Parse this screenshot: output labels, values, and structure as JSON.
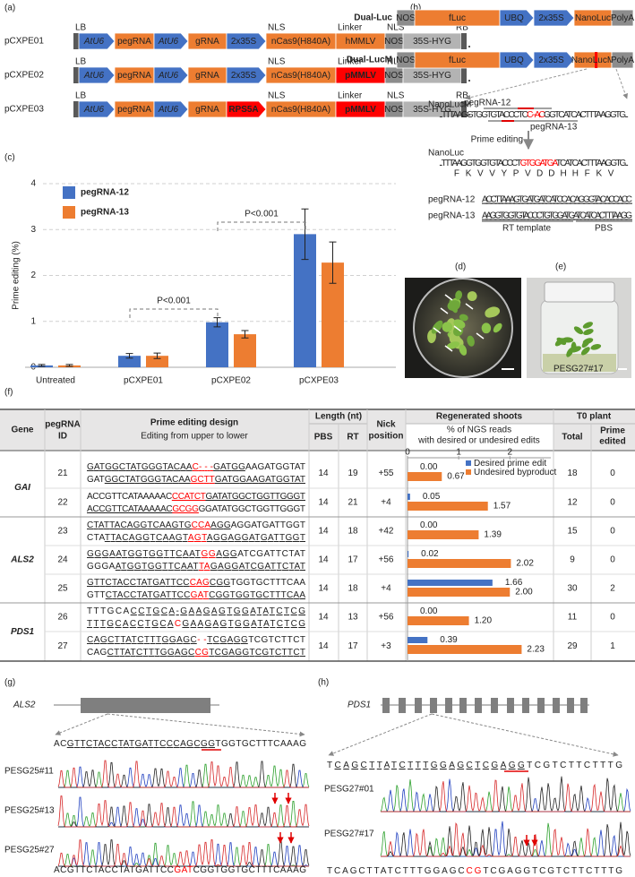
{
  "panel_labels": [
    "(a)",
    "(b)",
    "(c)",
    "(d)",
    "(e)",
    "(f)",
    "(g)",
    "(h)"
  ],
  "constructs": [
    {
      "name": "pCXPE01",
      "top_labels": [
        "LB",
        "NLS",
        "Linker",
        "NLS",
        "RB"
      ],
      "elements": [
        {
          "label": "AtU6",
          "color": "#4472c4",
          "shape": "arrow",
          "italic": true
        },
        {
          "label": "pegRNA",
          "color": "#ed7d31",
          "shape": "box"
        },
        {
          "label": "AtU6",
          "color": "#4472c4",
          "shape": "arrow",
          "italic": true
        },
        {
          "label": "gRNA",
          "color": "#ed7d31",
          "shape": "box"
        },
        {
          "label": "2x35S",
          "color": "#4472c4",
          "shape": "arrow"
        },
        {
          "label": "nCas9(H840A)",
          "color": "#ed7d31",
          "shape": "box"
        },
        {
          "label": "hMMLV",
          "color": "#ed7d31",
          "shape": "box"
        },
        {
          "label": "NOS",
          "color": "#8c8c8c",
          "shape": "box"
        },
        {
          "label": "35S-HYG",
          "color": "#b3b3b3",
          "shape": "box"
        }
      ]
    },
    {
      "name": "pCXPE02",
      "top_labels": [
        "LB",
        "NLS",
        "Linker",
        "NLS",
        "RB"
      ],
      "elements": [
        {
          "label": "AtU6",
          "color": "#4472c4",
          "shape": "arrow",
          "italic": true
        },
        {
          "label": "pegRNA",
          "color": "#ed7d31",
          "shape": "box"
        },
        {
          "label": "AtU6",
          "color": "#4472c4",
          "shape": "arrow",
          "italic": true
        },
        {
          "label": "gRNA",
          "color": "#ed7d31",
          "shape": "box"
        },
        {
          "label": "2x35S",
          "color": "#4472c4",
          "shape": "arrow"
        },
        {
          "label": "nCas9(H840A)",
          "color": "#ed7d31",
          "shape": "box"
        },
        {
          "label": "pMMLV",
          "color": "#ff0000",
          "shape": "box",
          "bold": true
        },
        {
          "label": "NOS",
          "color": "#8c8c8c",
          "shape": "box"
        },
        {
          "label": "35S-HYG",
          "color": "#b3b3b3",
          "shape": "box"
        }
      ]
    },
    {
      "name": "pCXPE03",
      "top_labels": [
        "LB",
        "NLS",
        "Linker",
        "NLS",
        "RB"
      ],
      "elements": [
        {
          "label": "AtU6",
          "color": "#4472c4",
          "shape": "arrow",
          "italic": true
        },
        {
          "label": "pegRNA",
          "color": "#ed7d31",
          "shape": "box"
        },
        {
          "label": "AtU6",
          "color": "#4472c4",
          "shape": "arrow",
          "italic": true
        },
        {
          "label": "gRNA",
          "color": "#ed7d31",
          "shape": "box"
        },
        {
          "label": "RPS5A",
          "color": "#ff0000",
          "shape": "arrow",
          "bold": true
        },
        {
          "label": "nCas9(H840A)",
          "color": "#ed7d31",
          "shape": "box"
        },
        {
          "label": "pMMLV",
          "color": "#ff0000",
          "shape": "box",
          "bold": true
        },
        {
          "label": "NOS",
          "color": "#8c8c8c",
          "shape": "box"
        },
        {
          "label": "35S-HYG",
          "color": "#b3b3b3",
          "shape": "box"
        }
      ]
    }
  ],
  "reporters": [
    {
      "name": "Dual-Luc",
      "elements": [
        {
          "label": "NOS",
          "color": "#8c8c8c",
          "shape": "box"
        },
        {
          "label": "fLuc",
          "color": "#ed7d31",
          "shape": "box"
        },
        {
          "label": "UBQ",
          "color": "#4472c4",
          "shape": "arrow"
        },
        {
          "label": "2x35S",
          "color": "#4472c4",
          "shape": "arrow"
        },
        {
          "label": "NanoLuc",
          "color": "#ed7d31",
          "shape": "box"
        },
        {
          "label": "PolyA",
          "color": "#8c8c8c",
          "shape": "box"
        }
      ]
    },
    {
      "name": "Dual-LucM",
      "elements": [
        {
          "label": "NOS",
          "color": "#8c8c8c",
          "shape": "box"
        },
        {
          "label": "fLuc",
          "color": "#ed7d31",
          "shape": "box"
        },
        {
          "label": "UBQ",
          "color": "#4472c4",
          "shape": "arrow"
        },
        {
          "label": "2x35S",
          "color": "#4472c4",
          "shape": "arrow"
        },
        {
          "label": "NanoLucM",
          "color": "#ed7d31",
          "shape": "box",
          "mark_color": "#ff0000"
        },
        {
          "label": "PolyA",
          "color": "#8c8c8c",
          "shape": "box"
        }
      ]
    }
  ],
  "reporter_sequences": {
    "mutant_label": "NanoLucM",
    "mutant": [
      {
        "text": "...TTTAAGGTGGTGTACCCTC"
      },
      {
        "text": "C--AC",
        "color": "#ff0000"
      },
      {
        "text": "GGTCATCACTTTAAGGTG..."
      }
    ],
    "guide_labels": [
      "pegRNA-12",
      "pegRNA-13"
    ],
    "arrow_label": "Prime editing",
    "wildtype_label": "NanoLuc",
    "wildtype": [
      {
        "text": "...TTTAAGGTGGTGTACCCT"
      },
      {
        "text": "GTGGATGA",
        "color": "#ff0000"
      },
      {
        "text": "TCATCACTTTAAGGTG..."
      }
    ],
    "protein": [
      "F",
      "K",
      "V",
      "V",
      "Y",
      "P",
      "V",
      "D",
      "D",
      "H",
      "H",
      "F",
      "K",
      "V"
    ],
    "pegrnas": [
      {
        "name": "pegRNA-12",
        "sequence": "ACCTTAAAGTGATGATCATCCACAGGGTACACCACC"
      },
      {
        "name": "pegRNA-13",
        "sequence": "AAGGTGGTGTACCCTGTGGATGATCATCACTTTAAGG"
      }
    ],
    "rt_label": "RT template",
    "pbs_label": "PBS"
  },
  "chart_data": [
    {
      "type": "bar",
      "y_label": "Prime editing (%)",
      "categories": [
        "Untreated",
        "pCXPE01",
        "pCXPE02",
        "pCXPE03"
      ],
      "series": [
        {
          "name": "pegRNA-12",
          "color": "#4472c4",
          "values": [
            0.04,
            0.25,
            0.98,
            2.9
          ],
          "errors": [
            0.02,
            0.05,
            0.1,
            0.55
          ]
        },
        {
          "name": "pegRNA-13",
          "color": "#ed7d31",
          "values": [
            0.04,
            0.25,
            0.72,
            2.28
          ],
          "errors": [
            0.02,
            0.06,
            0.08,
            0.45
          ]
        }
      ],
      "ylim": [
        0,
        4
      ],
      "yticks": [
        0,
        1,
        2,
        3,
        4
      ],
      "grid": true,
      "legend": "top-left",
      "annotations": [
        {
          "text": "P<0.001"
        },
        {
          "text": "P<0.001"
        }
      ]
    },
    {
      "type": "hbar",
      "series": [
        {
          "name": "Desired prime edit",
          "color": "#4472c4",
          "values": [
            0,
            0.05,
            0,
            0.02,
            1.66,
            0,
            0.39
          ],
          "value_labels": [
            "0.00",
            "0.05",
            "0.00",
            "0.02",
            "1.66",
            "0.00",
            "0.39"
          ]
        },
        {
          "name": "Undesired byproduct",
          "color": "#ed7d31",
          "values": [
            0.67,
            1.57,
            1.39,
            2.02,
            2.0,
            1.2,
            2.23
          ],
          "value_labels": [
            "0.67",
            "1.57",
            "1.39",
            "2.02",
            "2.00",
            "1.20",
            "2.23"
          ]
        }
      ],
      "xlim": [
        0,
        2.8
      ],
      "xticks": [
        0,
        1,
        2
      ],
      "legend": "top-right"
    }
  ],
  "photo_label": "PESG27#17",
  "table": {
    "headers": {
      "gene": "Gene",
      "id": [
        "pegRNA",
        "ID"
      ],
      "design": "Prime editing design",
      "design_sub": "Editing from upper to lower",
      "length": "Length (nt)",
      "pbs": "PBS",
      "rt": "RT",
      "nick": [
        "Nick",
        "position"
      ],
      "regenerated": "Regenerated shoots",
      "ngs": [
        "% of NGS reads",
        "with desired or undesired edits"
      ],
      "t0": "T0 plant",
      "total": "Total",
      "edited": [
        "Prime",
        "edited"
      ]
    },
    "groups": [
      {
        "gene": "GAI",
        "rows": [
          {
            "id": "21",
            "upper": [
              {
                "text": "GATGGCTATGGGTACAA",
                "underline": true
              },
              {
                "text": "C- - -",
                "color": "#ff0000",
                "underline": true
              },
              {
                "text": "GATGG",
                "underline": true
              },
              {
                "text": "AAGATGGTAT"
              }
            ],
            "lower": [
              {
                "text": "GAT"
              },
              {
                "text": "GGCTATGGGTACAA",
                "underline": true
              },
              {
                "text": "GCTT",
                "color": "#ff0000",
                "underline": true
              },
              {
                "text": "GATGGAAGATGGTAT",
                "underline": true
              }
            ],
            "pbs": 14,
            "rt": 19,
            "nick": "+55",
            "total": 18,
            "edited": 0
          },
          {
            "id": "22",
            "upper": [
              {
                "text": "ACCGTTCATAAAAAC"
              },
              {
                "text": "CCATCT",
                "color": "#ff0000",
                "underline": true
              },
              {
                "text": "GATATGGCTGGTTGGGT",
                "underline": true
              }
            ],
            "lower": [
              {
                "text": "ACCGTTCATAAAAAC",
                "underline": true
              },
              {
                "text": "GCGG",
                "color": "#ff0000",
                "underline": true
              },
              {
                "text": "GGATATGGCTGGTTGGGT"
              }
            ],
            "pbs": 14,
            "rt": 21,
            "nick": "+4",
            "total": 12,
            "edited": 0
          }
        ]
      },
      {
        "gene": "ALS2",
        "rows": [
          {
            "id": "23",
            "upper": [
              {
                "text": "CTATTACAGGTCAAGTG",
                "underline": true
              },
              {
                "text": "CCA",
                "color": "#ff0000",
                "underline": true
              },
              {
                "text": "AGG",
                "underline": true
              },
              {
                "text": "AGGATGATTGGT"
              }
            ],
            "lower": [
              {
                "text": "CTA"
              },
              {
                "text": "TTACAGGTCAAGT",
                "underline": true
              },
              {
                "text": "AGT",
                "color": "#ff0000",
                "underline": true
              },
              {
                "text": "AGGAGGATGATTGGT",
                "underline": true
              }
            ],
            "pbs": 14,
            "rt": 18,
            "nick": "+42",
            "total": 15,
            "edited": 0
          },
          {
            "id": "24",
            "upper": [
              {
                "text": "GGGAATGGTGGTTCAAT",
                "underline": true
              },
              {
                "text": "GG",
                "color": "#ff0000",
                "underline": true
              },
              {
                "text": "AGG",
                "underline": true
              },
              {
                "text": "ATCGATTCTAT"
              }
            ],
            "lower": [
              {
                "text": "GGGA"
              },
              {
                "text": "ATGGTGGTTCAAT",
                "underline": true
              },
              {
                "text": "TA",
                "color": "#ff0000",
                "underline": true
              },
              {
                "text": "GAGGATCGATTCTAT",
                "underline": true
              }
            ],
            "pbs": 14,
            "rt": 17,
            "nick": "+56",
            "total": 9,
            "edited": 0
          },
          {
            "id": "25",
            "upper": [
              {
                "text": "GTTCTACCTATGATTCC",
                "underline": true
              },
              {
                "text": "CAG",
                "color": "#ff0000",
                "underline": true
              },
              {
                "text": "CGG",
                "underline": true
              },
              {
                "text": "TGGTGCTTTCAA"
              }
            ],
            "lower": [
              {
                "text": "GTT"
              },
              {
                "text": "CTACCTATGATTCC",
                "underline": true
              },
              {
                "text": "GAT",
                "color": "#ff0000",
                "underline": true
              },
              {
                "text": "CGGTGGTGCTTTCAA",
                "underline": true
              }
            ],
            "pbs": 14,
            "rt": 18,
            "nick": "+4",
            "total": 30,
            "edited": 2
          }
        ]
      },
      {
        "gene": "PDS1",
        "rows": [
          {
            "id": "26",
            "upper": [
              {
                "text": "TTTGCA"
              },
              {
                "text": "CCTGCA-GAAGAGTGGATATCTCG",
                "underline": true
              }
            ],
            "lower": [
              {
                "text": "TTTGCACCTGCA",
                "underline": true
              },
              {
                "text": "C",
                "color": "#ff0000"
              },
              {
                "text": "GAAGAGTGGATATCTCG",
                "underline": true
              }
            ],
            "pbs": 14,
            "rt": 13,
            "nick": "+56",
            "total": 11,
            "edited": 0
          },
          {
            "id": "27",
            "upper": [
              {
                "text": "CAGCTTATCTTTGGAGC",
                "underline": true
              },
              {
                "text": "- -",
                "color": "#ff0000"
              },
              {
                "text": "TCGAGG",
                "underline": true
              },
              {
                "text": "TCGTCTTCT"
              }
            ],
            "lower": [
              {
                "text": "CAG"
              },
              {
                "text": "CTTATCTTTGGAGC",
                "underline": true
              },
              {
                "text": "CG",
                "color": "#ff0000",
                "underline": true
              },
              {
                "text": "TCGAGGTCGTCTTCT",
                "underline": true
              }
            ],
            "pbs": 14,
            "rt": 17,
            "nick": "+3",
            "total": 29,
            "edited": 1
          }
        ]
      }
    ]
  },
  "panel_g": {
    "gene": "ALS2",
    "reference": [
      {
        "text": "AC"
      },
      {
        "text": "GTTCTACCTATGATTCCCAGCGG",
        "underline": true
      },
      {
        "text": "TGGTGCTTTCAAAG"
      }
    ],
    "samples": [
      "PESG25#11",
      "PESG25#13",
      "PESG25#27"
    ],
    "edited": [
      {
        "text": "ACGTTCTACCTATGATTCC"
      },
      {
        "text": "GAT",
        "color": "#ff0000"
      },
      {
        "text": "CGGTGGTGCTTTCAAAG"
      }
    ]
  },
  "panel_h": {
    "gene": "PDS1",
    "reference": [
      {
        "text": "T"
      },
      {
        "text": "CAGCTTATCTTTGGAGCTCGAGG",
        "underline": true
      },
      {
        "text": "TCGTCTTCTTTG"
      }
    ],
    "samples": [
      "PESG27#01",
      "PESG27#17"
    ],
    "edited": [
      {
        "text": "TCAGCTTATCTTTGGAGC"
      },
      {
        "text": "CG",
        "color": "#ff0000"
      },
      {
        "text": "TCGAGGTCGTCTTCTTTG"
      }
    ]
  }
}
